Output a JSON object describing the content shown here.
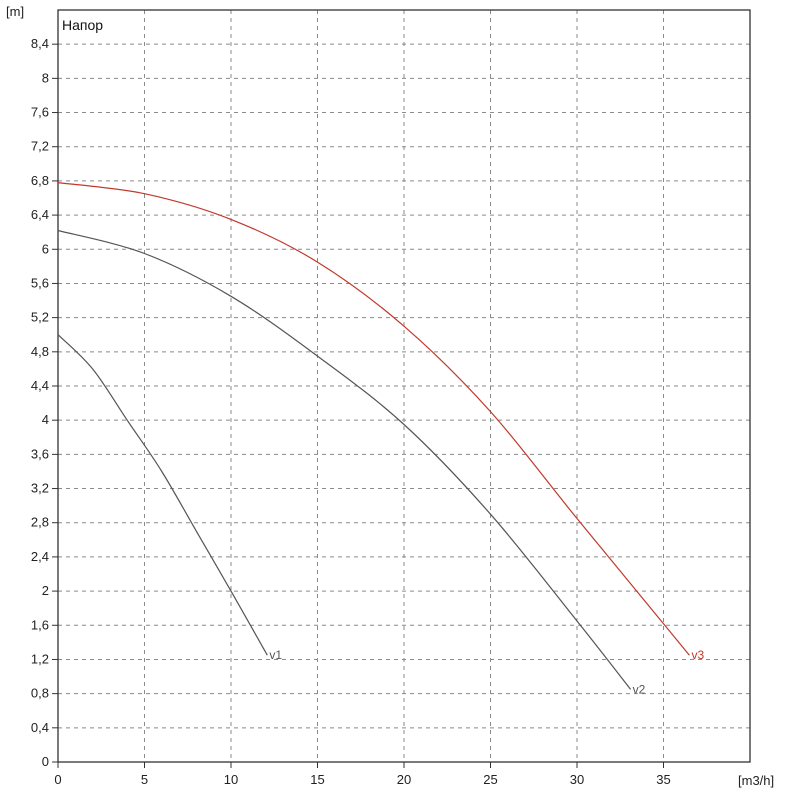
{
  "chart_data": {
    "type": "line",
    "title": "Напор",
    "x_unit": "[m3/h]",
    "y_unit": "[m]",
    "xlim": [
      0,
      40
    ],
    "ylim": [
      0,
      8.8
    ],
    "x_ticks": [
      "0",
      "5",
      "10",
      "15",
      "20",
      "25",
      "30",
      "35"
    ],
    "x_tick_values": [
      0,
      5,
      10,
      15,
      20,
      25,
      30,
      35
    ],
    "y_ticks": [
      "0",
      "0,4",
      "0,8",
      "1,2",
      "1,6",
      "2",
      "2,4",
      "2,8",
      "3,2",
      "3,6",
      "4",
      "4,4",
      "4,8",
      "5,2",
      "5,6",
      "6",
      "6,4",
      "6,8",
      "7,2",
      "7,6",
      "8",
      "8,4"
    ],
    "y_tick_values": [
      0,
      0.4,
      0.8,
      1.2,
      1.6,
      2.0,
      2.4,
      2.8,
      3.2,
      3.6,
      4.0,
      4.4,
      4.8,
      5.2,
      5.6,
      6.0,
      6.4,
      6.8,
      7.2,
      7.6,
      8.0,
      8.4
    ],
    "grid": true,
    "series": [
      {
        "name": "v1",
        "color": "#555555",
        "x": [
          0,
          2,
          4,
          6,
          8,
          10,
          12.1
        ],
        "y": [
          5.0,
          4.6,
          4.0,
          3.4,
          2.7,
          2.0,
          1.25
        ]
      },
      {
        "name": "v2",
        "color": "#555555",
        "x": [
          0,
          5,
          10,
          15,
          20,
          25,
          30,
          33.1
        ],
        "y": [
          6.22,
          5.95,
          5.45,
          4.75,
          3.95,
          2.9,
          1.65,
          0.85
        ]
      },
      {
        "name": "v3",
        "color": "#c0392b",
        "x": [
          0,
          5,
          10,
          15,
          20,
          25,
          30,
          36.5
        ],
        "y": [
          6.78,
          6.65,
          6.35,
          5.85,
          5.1,
          4.1,
          2.85,
          1.25
        ]
      }
    ]
  }
}
